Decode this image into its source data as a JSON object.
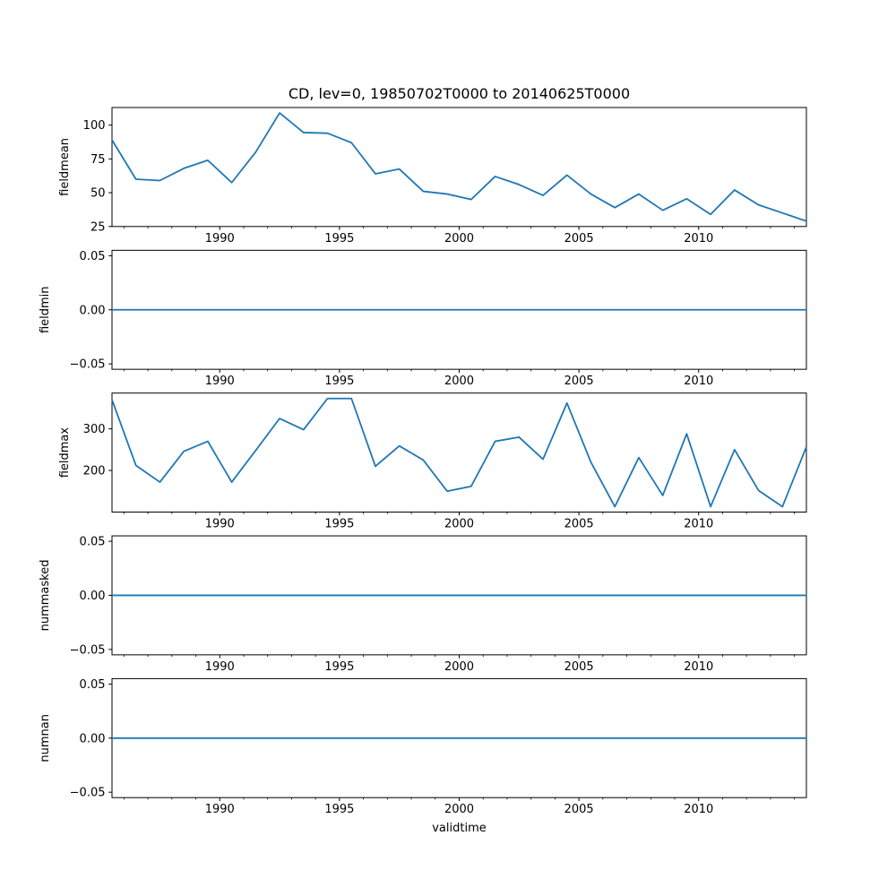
{
  "title": "CD, lev=0, 19850702T0000 to 20140625T0000",
  "figure": {
    "background": "#ffffff",
    "line_color": "#1f77b4",
    "frame_color": "#000000"
  },
  "x_axis": {
    "label": "validtime",
    "xlim": [
      1985.5,
      2014.5
    ],
    "major_ticks": [
      1990,
      1995,
      2000,
      2005,
      2010
    ],
    "major_labels": [
      "1990",
      "1995",
      "2000",
      "2005",
      "2010"
    ],
    "minor_ticks": [
      1986,
      1987,
      1988,
      1989,
      1991,
      1992,
      1993,
      1994,
      1996,
      1997,
      1998,
      1999,
      2001,
      2002,
      2003,
      2004,
      2006,
      2007,
      2008,
      2009,
      2011,
      2012,
      2013,
      2014
    ],
    "x_values": [
      1985.5,
      1986.5,
      1987.5,
      1988.5,
      1989.5,
      1990.5,
      1991.5,
      1992.5,
      1993.5,
      1994.5,
      1995.5,
      1996.5,
      1997.5,
      1998.5,
      1999.5,
      2000.5,
      2001.5,
      2002.5,
      2003.5,
      2004.5,
      2005.5,
      2006.5,
      2007.5,
      2008.5,
      2009.5,
      2010.5,
      2011.5,
      2012.5,
      2013.5,
      2014.5
    ]
  },
  "chart_data": [
    {
      "type": "line",
      "ylabel": "fieldmean",
      "ylim": [
        25,
        113
      ],
      "yticks": [
        25,
        50,
        75,
        100
      ],
      "ytick_labels": [
        "25",
        "50",
        "75",
        "100"
      ],
      "values": [
        89,
        60,
        59,
        68,
        74,
        57.5,
        80,
        109,
        94.5,
        94,
        87,
        64,
        67.5,
        51,
        49,
        45,
        62,
        56,
        48,
        63,
        49,
        39,
        49,
        37,
        45.5,
        34,
        52,
        41,
        35,
        29
      ]
    },
    {
      "type": "line",
      "ylabel": "fieldmin",
      "ylim": [
        -0.055,
        0.055
      ],
      "yticks": [
        -0.05,
        0,
        0.05
      ],
      "ytick_labels": [
        "−0.05",
        "0.00",
        "0.05"
      ],
      "values": [
        0,
        0,
        0,
        0,
        0,
        0,
        0,
        0,
        0,
        0,
        0,
        0,
        0,
        0,
        0,
        0,
        0,
        0,
        0,
        0,
        0,
        0,
        0,
        0,
        0,
        0,
        0,
        0,
        0,
        0
      ]
    },
    {
      "type": "line",
      "ylabel": "fieldmax",
      "ylim": [
        100,
        386
      ],
      "yticks": [
        200,
        300
      ],
      "ytick_labels": [
        "200",
        "300"
      ],
      "values": [
        370,
        212,
        172,
        246,
        270,
        172,
        248,
        325,
        298,
        373,
        373,
        210,
        259,
        225,
        150,
        162,
        270,
        280,
        227,
        362,
        220,
        113,
        231,
        140,
        288,
        113,
        250,
        152,
        113,
        257
      ]
    },
    {
      "type": "line",
      "ylabel": "nummasked",
      "ylim": [
        -0.055,
        0.055
      ],
      "yticks": [
        -0.05,
        0,
        0.05
      ],
      "ytick_labels": [
        "−0.05",
        "0.00",
        "0.05"
      ],
      "values": [
        0,
        0,
        0,
        0,
        0,
        0,
        0,
        0,
        0,
        0,
        0,
        0,
        0,
        0,
        0,
        0,
        0,
        0,
        0,
        0,
        0,
        0,
        0,
        0,
        0,
        0,
        0,
        0,
        0,
        0
      ]
    },
    {
      "type": "line",
      "ylabel": "numnan",
      "ylim": [
        -0.055,
        0.055
      ],
      "yticks": [
        -0.05,
        0,
        0.05
      ],
      "ytick_labels": [
        "−0.05",
        "0.00",
        "0.05"
      ],
      "values": [
        0,
        0,
        0,
        0,
        0,
        0,
        0,
        0,
        0,
        0,
        0,
        0,
        0,
        0,
        0,
        0,
        0,
        0,
        0,
        0,
        0,
        0,
        0,
        0,
        0,
        0,
        0,
        0,
        0,
        0
      ]
    }
  ]
}
